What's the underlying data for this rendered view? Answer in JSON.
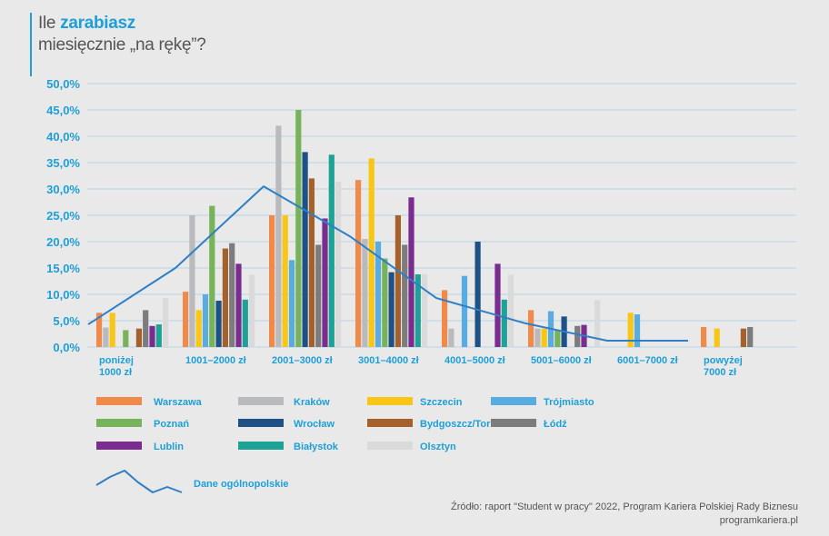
{
  "header": {
    "title_prefix": "Ile ",
    "title_highlight": "zarabiasz",
    "title_line2": "miesięcznie „na rękę”?"
  },
  "colors": {
    "accent": "#1d9fd8",
    "grid": "#b7d3e6",
    "background": "#e9e9e9",
    "series": [
      "#f08a4b",
      "#b9babd",
      "#f7c617",
      "#58acdf",
      "#77b35a",
      "#1e5286",
      "#a4612c",
      "#7c7c7c",
      "#7a2c8f",
      "#1ea295",
      "#dadada"
    ],
    "national_line": "#2e7fc6"
  },
  "chart_data": {
    "type": "bar",
    "title": "Ile zarabiasz miesięcznie „na rękę”?",
    "xlabel": "",
    "ylabel": "",
    "ylim": [
      0,
      50
    ],
    "yticks": [
      "0,0%",
      "5,0%",
      "10,0%",
      "15,0%",
      "20,0%",
      "25,0%",
      "30,0%",
      "35,0%",
      "40,0%",
      "45,0%",
      "50,0%"
    ],
    "categories": [
      [
        "poniżej",
        "1000 zł"
      ],
      [
        "1001–2000 zł"
      ],
      [
        "2001–3000 zł"
      ],
      [
        "3001–4000 zł"
      ],
      [
        "4001–5000 zł"
      ],
      [
        "5001–6000 zł"
      ],
      [
        "6001–7000 zł"
      ],
      [
        "powyżej",
        "7000 zł"
      ]
    ],
    "series": [
      {
        "name": "Warszawa",
        "values": [
          6.5,
          10.5,
          25.0,
          31.7,
          10.8,
          7.0,
          0,
          3.8
        ]
      },
      {
        "name": "Kraków",
        "values": [
          3.7,
          25.0,
          42.0,
          20.5,
          3.5,
          3.5,
          0,
          0
        ]
      },
      {
        "name": "Szczecin",
        "values": [
          6.5,
          7.0,
          25.0,
          35.8,
          0,
          3.5,
          6.5,
          3.5
        ]
      },
      {
        "name": "Trójmiasto",
        "values": [
          0,
          10.0,
          16.5,
          20.0,
          13.5,
          6.8,
          6.2,
          0
        ]
      },
      {
        "name": "Poznań",
        "values": [
          3.2,
          26.8,
          45.0,
          16.8,
          0,
          3.2,
          0,
          0
        ]
      },
      {
        "name": "Wrocław",
        "values": [
          0,
          8.8,
          37.0,
          14.2,
          20.0,
          5.8,
          0,
          0
        ]
      },
      {
        "name": "Bydgoszcz/Toruń",
        "values": [
          3.5,
          18.7,
          32.0,
          25.0,
          0,
          0,
          0,
          3.5
        ]
      },
      {
        "name": "Łódź",
        "values": [
          7.0,
          19.7,
          19.4,
          19.4,
          0,
          4.0,
          0,
          3.8
        ]
      },
      {
        "name": "Lublin",
        "values": [
          4.0,
          15.8,
          24.4,
          28.4,
          15.8,
          4.2,
          0,
          0
        ]
      },
      {
        "name": "Białystok",
        "values": [
          4.3,
          9.0,
          36.5,
          13.8,
          9.0,
          0,
          0,
          0
        ]
      },
      {
        "name": "Olsztyn",
        "values": [
          9.3,
          13.7,
          31.4,
          13.8,
          13.7,
          8.9,
          0,
          0
        ]
      }
    ],
    "line_series": {
      "name": "Dane ogólnopolskie",
      "values": [
        4.3,
        15.0,
        30.5,
        21.0,
        9.3,
        4.5,
        1.2,
        1.2
      ]
    }
  },
  "legend_line_label": "Dane ogólnopolskie",
  "source": {
    "line1": "Źródło: raport \"Student w pracy\" 2022, Program Kariera Polskiej Rady Biznesu",
    "line2": "programkariera.pl"
  }
}
